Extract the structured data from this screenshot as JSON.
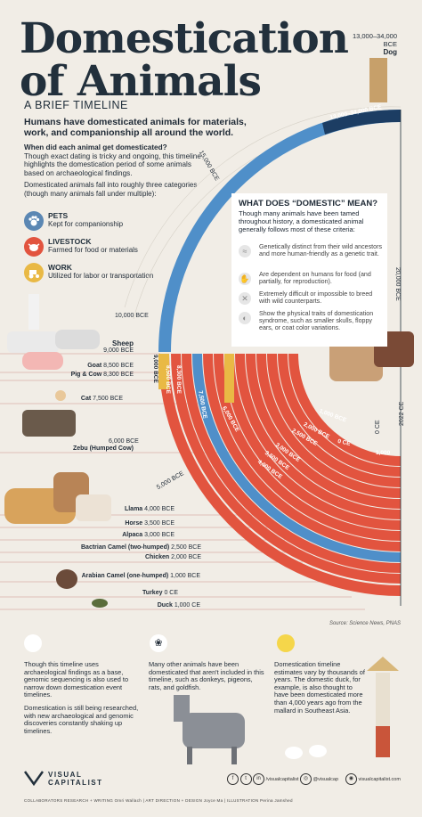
{
  "header": {
    "title_line1": "Domestication",
    "title_line2": "of Animals",
    "subtitle": "A BRIEF TIMELINE",
    "lead": "Humans have domesticated animals for materials, work, and companionship all around the world.",
    "question_title": "When did each animal get domesticated?",
    "question_body": "Though exact dating is tricky and ongoing, this timeline highlights the domestication period of some animals based on archaeological findings.",
    "categories_intro": "Domesticated animals fall into roughly three categories (though many animals fall under multiple):"
  },
  "legend": [
    {
      "title": "PETS",
      "desc": "Kept for companionship",
      "color": "#5b87b3",
      "icon": "paw-icon"
    },
    {
      "title": "LIVESTOCK",
      "desc": "Farmed for food or materials",
      "color": "#e2543f",
      "icon": "cow-icon"
    },
    {
      "title": "WORK",
      "desc": "Utilized for labor or transportation",
      "color": "#e9b945",
      "icon": "tractor-icon"
    }
  ],
  "dog": {
    "range": "13,000–34,000 BCE",
    "name": "Dog"
  },
  "arc_labels": {
    "dog_band": "13,000–34,000 BCE",
    "tick_15000": "15,000 BCE",
    "tick_10000": "10,000 BCE",
    "tick_6000": "6,000 BCE",
    "tick_5000": "5,000 BCE",
    "tick_20000": "20,000 BCE",
    "tick_0": "0 CE",
    "tick_2022": "2022 CE"
  },
  "domestic_card": {
    "title": "WHAT DOES “DOMESTIC” MEAN?",
    "intro": "Though many animals have been tamed throughout history, a domesticated animal generally follows most of these criteria:",
    "criteria": [
      {
        "icon": "dna-icon",
        "text": "Genetically distinct from their wild ancestors and more human-friendly as a genetic trait."
      },
      {
        "icon": "hand-icon",
        "text": "Are dependent on humans for food (and partially, for reproduction)."
      },
      {
        "icon": "x-icon",
        "text": "Extremely difficult or impossible to breed with wild counterparts."
      },
      {
        "icon": "ear-icon",
        "text": "Show the physical traits of domestication syndrome, such as smaller skulls, floppy ears, or coat color variations."
      }
    ]
  },
  "animals": [
    {
      "name": "Sheep",
      "date": "9,000 BCE"
    },
    {
      "name": "Goat",
      "date": "8,500 BCE"
    },
    {
      "name": "Pig & Cow",
      "date": "8,300 BCE"
    },
    {
      "name": "Cat",
      "date": "7,500 BCE"
    },
    {
      "name": "Zebu (Humped Cow)",
      "date": "6,000 BCE"
    },
    {
      "name": "Llama",
      "date": "4,000 BCE"
    },
    {
      "name": "Horse",
      "date": "3,500 BCE"
    },
    {
      "name": "Alpaca",
      "date": "3,000 BCE"
    },
    {
      "name": "Bactrian Camel (two-humped)",
      "date": "2,500 BCE"
    },
    {
      "name": "Chicken",
      "date": "2,000 BCE"
    },
    {
      "name": "Arabian Camel (one-humped)",
      "date": "1,000 BCE"
    },
    {
      "name": "Turkey",
      "date": "0 CE"
    },
    {
      "name": "Duck",
      "date": "1,000 CE"
    }
  ],
  "bar_labels": [
    "9,000 BCE",
    "8,500 BCE",
    "8,300 BCE",
    "7,500 BCE",
    "6,000 BCE",
    "4,000 BCE",
    "3,500 BCE",
    "3,000 BCE",
    "2,500 BCE",
    "2,000 BCE",
    "1,000 BCE",
    "0 CE",
    "1,000"
  ],
  "source": "Source: Science News, PNAS",
  "bottom": {
    "col1_p1": "Though this timeline uses archaeological findings as a base, genomic sequencing is also used to narrow down domestication event timelines.",
    "col1_p2": "Domestication is still being researched, with new archaeological and genomic discoveries constantly shaking up timelines.",
    "col2": "Many other animals have been domesticated that aren't included in this timeline, such as donkeys, pigeons, rats, and goldfish.",
    "col3": "Domestication timeline estimates vary by thousands of years. The domestic duck, for example, is also thought to have been domesticated more than 4,000 years ago from the mallard in Southeast Asia."
  },
  "brand": {
    "line1": "VISUAL",
    "line2": "CAPITALIST"
  },
  "social": [
    "/visualcapitalist",
    "@visualcap",
    "visualcapitalist.com"
  ],
  "credits": "COLLABORATORS   RESEARCH + WRITING Omri Wallach  |  ART DIRECTION + DESIGN Joyce Ma  |  ILLUSTRATION Perina Jamshed",
  "colors": {
    "bg": "#f1ede6",
    "navy": "#22303c",
    "blue": "#4f8fc9",
    "red": "#e2543f",
    "orange": "#e9b945"
  }
}
